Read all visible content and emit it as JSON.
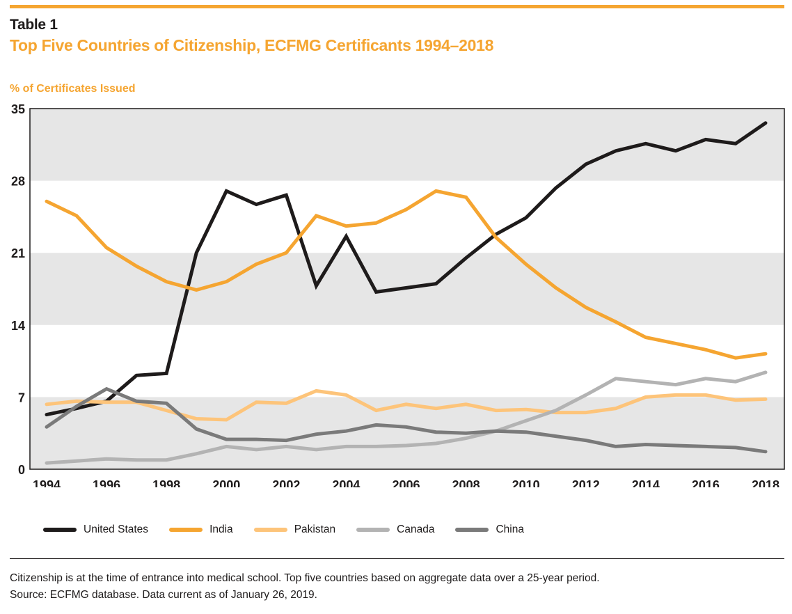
{
  "header": {
    "table_label": "Table 1",
    "title": "Top Five Countries of Citizenship, ECFMG Certificants 1994–2018",
    "y_axis_label": "% of Certificates Issued"
  },
  "colors": {
    "accent": "#f5a531",
    "band": "#e6e6e6",
    "axis": "#1e1b1b"
  },
  "chart_data": {
    "type": "line",
    "title": "Top Five Countries of Citizenship, ECFMG Certificants 1994–2018",
    "xlabel": "",
    "ylabel": "% of Certificates Issued",
    "ylim": [
      0,
      35
    ],
    "yticks": [
      0,
      7,
      14,
      21,
      28,
      35
    ],
    "ytick_labels": [
      "0",
      "7",
      "14",
      "21",
      "28",
      "35"
    ],
    "xlim": [
      1994,
      2018
    ],
    "xticks": [
      1994,
      1996,
      1998,
      2000,
      2002,
      2004,
      2006,
      2008,
      2010,
      2012,
      2014,
      2016,
      2018
    ],
    "xtick_labels": [
      "1994",
      "1996",
      "1998",
      "2000",
      "2002",
      "2004",
      "2006",
      "2008",
      "2010",
      "2012",
      "2014",
      "2016",
      "2018"
    ],
    "grid": "alternating horizontal bands",
    "legend_position": "bottom",
    "x": [
      1994,
      1995,
      1996,
      1997,
      1998,
      1999,
      2000,
      2001,
      2002,
      2003,
      2004,
      2005,
      2006,
      2007,
      2008,
      2009,
      2010,
      2011,
      2012,
      2013,
      2014,
      2015,
      2016,
      2017,
      2018
    ],
    "series": [
      {
        "name": "United States",
        "color": "#1e1b1b",
        "values": [
          5.3,
          5.9,
          6.6,
          9.1,
          9.3,
          21.0,
          27.0,
          25.7,
          26.6,
          17.8,
          22.6,
          17.2,
          17.6,
          18.0,
          20.5,
          22.8,
          24.4,
          27.3,
          29.6,
          30.9,
          31.6,
          30.9,
          32.0,
          31.6,
          33.6
        ]
      },
      {
        "name": "India",
        "color": "#f5a531",
        "values": [
          26.0,
          24.6,
          21.5,
          19.7,
          18.2,
          17.4,
          18.2,
          19.9,
          21.0,
          24.6,
          23.6,
          23.9,
          25.2,
          27.0,
          26.4,
          22.5,
          19.9,
          17.6,
          15.7,
          14.3,
          12.8,
          12.2,
          11.6,
          10.8,
          11.2
        ]
      },
      {
        "name": "Pakistan",
        "color": "#fdc47a",
        "values": [
          6.3,
          6.6,
          6.5,
          6.5,
          5.7,
          4.9,
          4.8,
          6.5,
          6.4,
          7.6,
          7.2,
          5.7,
          6.3,
          5.9,
          6.3,
          5.7,
          5.8,
          5.5,
          5.5,
          5.9,
          7.0,
          7.2,
          7.2,
          6.7,
          6.8
        ]
      },
      {
        "name": "Canada",
        "color": "#b3b3b3",
        "values": [
          0.6,
          0.8,
          1.0,
          0.9,
          0.9,
          1.5,
          2.2,
          1.9,
          2.2,
          1.9,
          2.2,
          2.2,
          2.3,
          2.5,
          3.0,
          3.7,
          4.7,
          5.7,
          7.2,
          8.8,
          8.5,
          8.2,
          8.8,
          8.5,
          9.4
        ]
      },
      {
        "name": "China",
        "color": "#7a7a7a",
        "values": [
          4.1,
          6.1,
          7.8,
          6.6,
          6.4,
          3.9,
          2.9,
          2.9,
          2.8,
          3.4,
          3.7,
          4.3,
          4.1,
          3.6,
          3.5,
          3.7,
          3.6,
          3.2,
          2.8,
          2.2,
          2.4,
          2.3,
          2.2,
          2.1,
          1.7
        ]
      }
    ]
  },
  "legend": [
    {
      "label": "United States",
      "color": "#1e1b1b"
    },
    {
      "label": "India",
      "color": "#f5a531"
    },
    {
      "label": "Pakistan",
      "color": "#fdc47a"
    },
    {
      "label": "Canada",
      "color": "#b3b3b3"
    },
    {
      "label": "China",
      "color": "#7a7a7a"
    }
  ],
  "footnote": {
    "line1": "Citizenship is at the time of entrance into medical school. Top five countries based on aggregate data over a 25-year period.",
    "line2": "Source: ECFMG database. Data current as of January 26, 2019."
  }
}
